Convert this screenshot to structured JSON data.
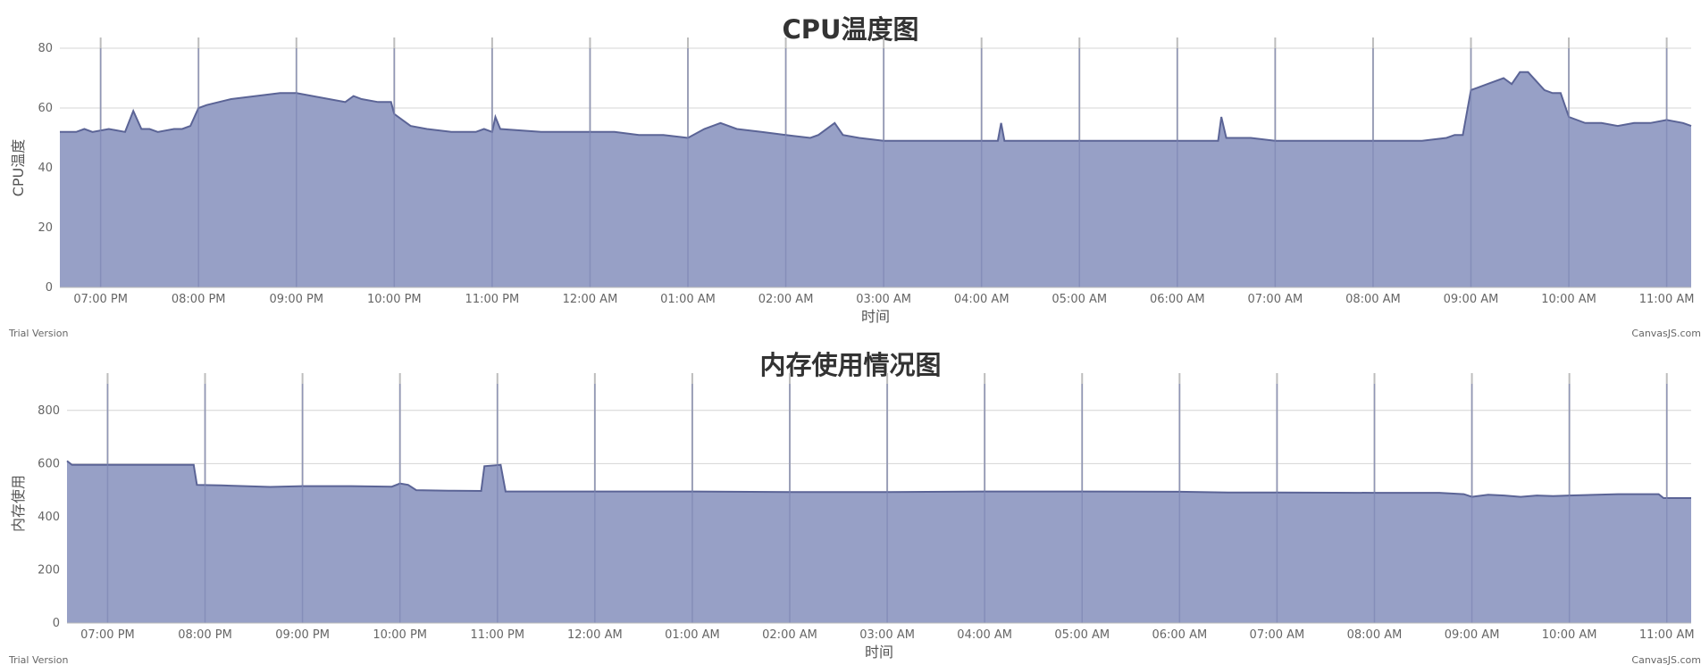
{
  "chart_data": [
    {
      "type": "area",
      "title": "CPU温度图",
      "xlabel": "时间",
      "ylabel": "CPU温度",
      "ylim": [
        0,
        80
      ],
      "yticks": [
        0,
        20,
        40,
        60,
        80
      ],
      "x_range": [
        "06:35 PM",
        "11:15 AM"
      ],
      "xticks": [
        "07:00 PM",
        "08:00 PM",
        "09:00 PM",
        "10:00 PM",
        "11:00 PM",
        "12:00 AM",
        "01:00 AM",
        "02:00 AM",
        "03:00 AM",
        "04:00 AM",
        "05:00 AM",
        "06:00 AM",
        "07:00 AM",
        "08:00 AM",
        "09:00 AM",
        "10:00 AM",
        "11:00 AM"
      ],
      "grid": true,
      "fill_color": "#97a0c6",
      "line_color": "#5b6496",
      "x": [
        "06:35 PM",
        "06:45 PM",
        "06:50 PM",
        "06:55 PM",
        "07:05 PM",
        "07:15 PM",
        "07:20 PM",
        "07:25 PM",
        "07:30 PM",
        "07:35 PM",
        "07:45 PM",
        "07:50 PM",
        "07:55 PM",
        "08:00 PM",
        "08:05 PM",
        "08:20 PM",
        "08:35 PM",
        "08:50 PM",
        "09:00 PM",
        "09:10 PM",
        "09:20 PM",
        "09:30 PM",
        "09:35 PM",
        "09:40 PM",
        "09:50 PM",
        "09:58 PM",
        "10:00 PM",
        "10:05 PM",
        "10:10 PM",
        "10:20 PM",
        "10:35 PM",
        "10:50 PM",
        "10:55 PM",
        "11:00 PM",
        "11:02 PM",
        "11:05 PM",
        "11:30 PM",
        "11:45 PM",
        "12:00 AM",
        "12:15 AM",
        "12:30 AM",
        "12:45 AM",
        "01:00 AM",
        "01:10 AM",
        "01:20 AM",
        "01:30 AM",
        "01:45 AM",
        "02:00 AM",
        "02:15 AM",
        "02:20 AM",
        "02:30 AM",
        "02:35 AM",
        "02:45 AM",
        "03:00 AM",
        "03:30 AM",
        "04:00 AM",
        "04:10 AM",
        "04:12 AM",
        "04:14 AM",
        "04:30 AM",
        "05:00 AM",
        "05:30 AM",
        "06:00 AM",
        "06:20 AM",
        "06:25 AM",
        "06:27 AM",
        "06:30 AM",
        "06:45 AM",
        "07:00 AM",
        "07:30 AM",
        "08:00 AM",
        "08:30 AM",
        "08:45 AM",
        "08:50 AM",
        "08:55 AM",
        "09:00 AM",
        "09:10 AM",
        "09:20 AM",
        "09:25 AM",
        "09:30 AM",
        "09:35 AM",
        "09:45 AM",
        "09:50 AM",
        "09:55 AM",
        "10:00 AM",
        "10:10 AM",
        "10:20 AM",
        "10:30 AM",
        "10:40 AM",
        "10:50 AM",
        "11:00 AM",
        "11:10 AM",
        "11:15 AM"
      ],
      "values": [
        52,
        52,
        53,
        52,
        53,
        52,
        59,
        53,
        53,
        52,
        53,
        53,
        54,
        60,
        61,
        63,
        64,
        65,
        65,
        64,
        63,
        62,
        64,
        63,
        62,
        62,
        58,
        56,
        54,
        53,
        52,
        52,
        53,
        52,
        57,
        53,
        52,
        52,
        52,
        52,
        51,
        51,
        50,
        53,
        55,
        53,
        52,
        51,
        50,
        51,
        55,
        51,
        50,
        49,
        49,
        49,
        49,
        55,
        49,
        49,
        49,
        49,
        49,
        49,
        49,
        57,
        50,
        50,
        49,
        49,
        49,
        49,
        50,
        51,
        51,
        66,
        68,
        70,
        68,
        72,
        72,
        66,
        65,
        65,
        57,
        55,
        55,
        54,
        55,
        55,
        56,
        55,
        54
      ]
    },
    {
      "type": "area",
      "title": "内存使用情况图",
      "xlabel": "时间",
      "ylabel": "内存使用",
      "ylim": [
        0,
        900
      ],
      "yticks": [
        0,
        200,
        400,
        600,
        800
      ],
      "x_range": [
        "06:35 PM",
        "11:15 AM"
      ],
      "xticks": [
        "07:00 PM",
        "08:00 PM",
        "09:00 PM",
        "10:00 PM",
        "11:00 PM",
        "12:00 AM",
        "01:00 AM",
        "02:00 AM",
        "03:00 AM",
        "04:00 AM",
        "05:00 AM",
        "06:00 AM",
        "07:00 AM",
        "08:00 AM",
        "09:00 AM",
        "10:00 AM",
        "11:00 AM"
      ],
      "grid": true,
      "fill_color": "#97a0c6",
      "line_color": "#5b6496",
      "x": [
        "06:35 PM",
        "06:38 PM",
        "07:00 PM",
        "07:30 PM",
        "07:53 PM",
        "07:55 PM",
        "08:10 PM",
        "08:40 PM",
        "09:00 PM",
        "09:30 PM",
        "09:55 PM",
        "10:00 PM",
        "10:05 PM",
        "10:10 PM",
        "10:30 PM",
        "10:50 PM",
        "10:52 PM",
        "11:02 PM",
        "11:05 PM",
        "12:00 AM",
        "01:00 AM",
        "02:00 AM",
        "03:00 AM",
        "04:00 AM",
        "05:00 AM",
        "06:00 AM",
        "06:30 AM",
        "07:00 AM",
        "08:00 AM",
        "08:40 AM",
        "08:55 AM",
        "09:00 AM",
        "09:10 AM",
        "09:20 AM",
        "09:30 AM",
        "09:40 AM",
        "09:50 AM",
        "10:00 AM",
        "10:30 AM",
        "10:55 AM",
        "10:58 AM",
        "11:15 AM"
      ],
      "values": [
        610,
        595,
        595,
        595,
        595,
        520,
        518,
        512,
        515,
        515,
        513,
        525,
        520,
        500,
        498,
        497,
        590,
        595,
        495,
        495,
        495,
        493,
        493,
        495,
        495,
        494,
        491,
        491,
        490,
        490,
        485,
        475,
        483,
        480,
        475,
        480,
        478,
        480,
        485,
        485,
        470,
        470
      ]
    }
  ],
  "footer": {
    "trial_label": "Trial Version",
    "credit_label": "CanvasJS.com"
  }
}
